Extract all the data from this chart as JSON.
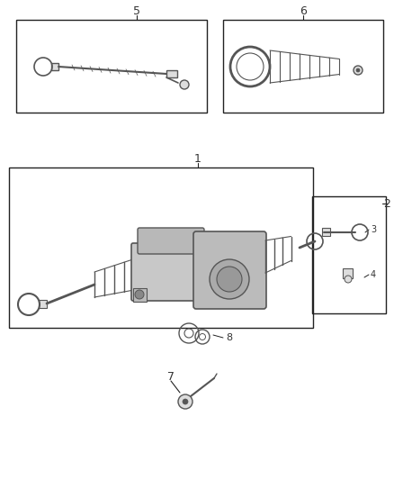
{
  "bg_color": "#ffffff",
  "line_color": "#222222",
  "box_color": "#222222",
  "label_color": "#333333",
  "fig_width": 4.38,
  "fig_height": 5.33,
  "dpi": 100,
  "part_color": "#555555",
  "part_fill": "#dddddd",
  "part_dark": "#333333"
}
